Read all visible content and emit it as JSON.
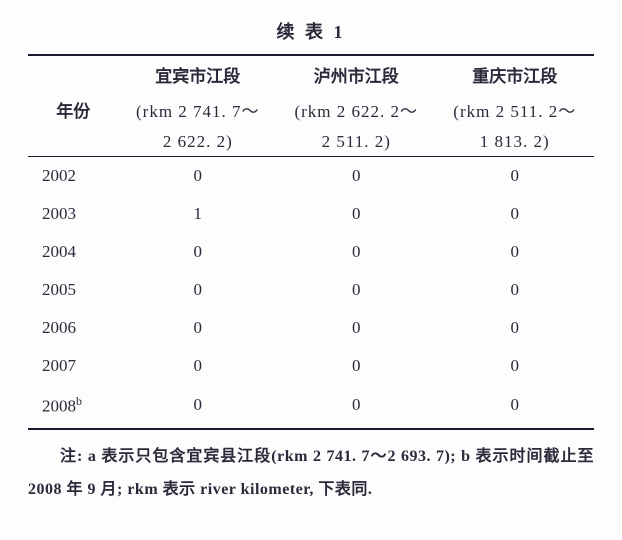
{
  "title": "续 表 1",
  "headers": {
    "year_label": "年份",
    "col1": {
      "name": "宜宾市江段",
      "rkm1": "(rkm 2 741. 7～",
      "rkm2": "2 622. 2)"
    },
    "col2": {
      "name": "泸州市江段",
      "rkm1": "(rkm 2 622. 2～",
      "rkm2": "2 511. 2)"
    },
    "col3": {
      "name": "重庆市江段",
      "rkm1": "(rkm 2 511. 2～",
      "rkm2": "1 813. 2)"
    }
  },
  "rows": [
    {
      "year": "2002",
      "c1": "0",
      "c2": "0",
      "c3": "0"
    },
    {
      "year": "2003",
      "c1": "1",
      "c2": "0",
      "c3": "0"
    },
    {
      "year": "2004",
      "c1": "0",
      "c2": "0",
      "c3": "0"
    },
    {
      "year": "2005",
      "c1": "0",
      "c2": "0",
      "c3": "0"
    },
    {
      "year": "2006",
      "c1": "0",
      "c2": "0",
      "c3": "0"
    },
    {
      "year": "2007",
      "c1": "0",
      "c2": "0",
      "c3": "0"
    },
    {
      "year": "2008",
      "sup": "b",
      "c1": "0",
      "c2": "0",
      "c3": "0"
    }
  ],
  "note": "注: a 表示只包含宜宾县江段(rkm 2 741. 7～2 693. 7); b 表示时间截止至 2008 年 9 月; rkm 表示 river kilometer, 下表同."
}
